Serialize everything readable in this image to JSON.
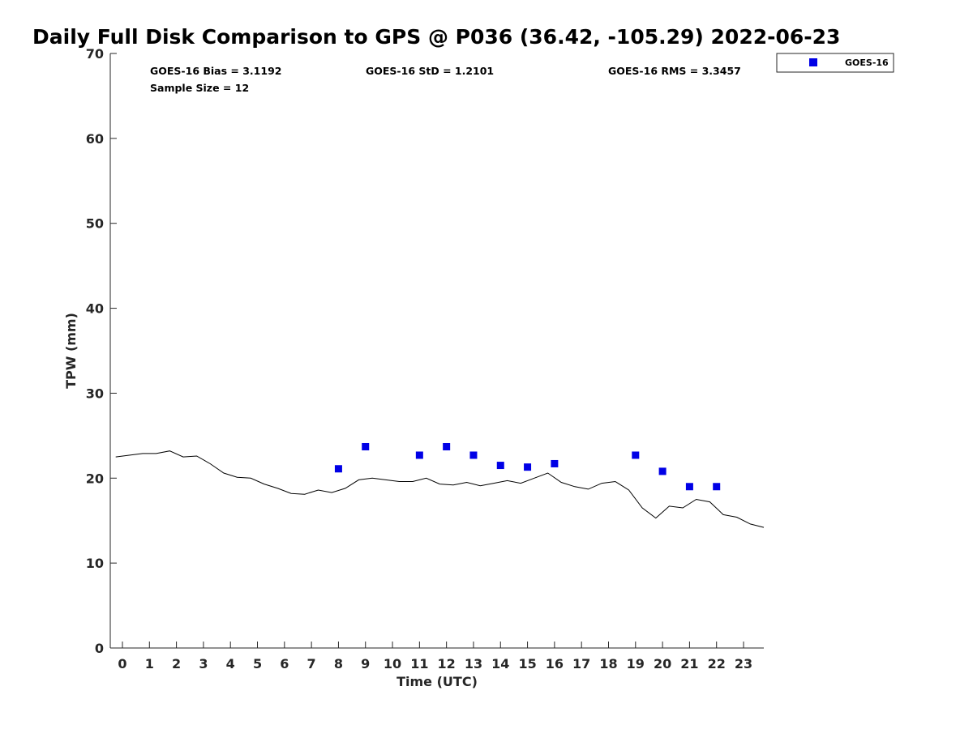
{
  "chart_data": {
    "type": "scatter",
    "title": "Daily Full Disk Comparison to GPS @ P036 (36.42, -105.29) 2022-06-23",
    "xlabel": "Time (UTC)",
    "ylabel": "TPW (mm)",
    "xlim": [
      -0.45,
      23.75
    ],
    "ylim": [
      0,
      70
    ],
    "x_ticks": [
      0,
      1,
      2,
      3,
      4,
      5,
      6,
      7,
      8,
      9,
      10,
      11,
      12,
      13,
      14,
      15,
      16,
      17,
      18,
      19,
      20,
      21,
      22,
      23
    ],
    "x_tick_labels": [
      "0",
      "1",
      "2",
      "3",
      "4",
      "5",
      "6",
      "7",
      "8",
      "9",
      "10",
      "11",
      "12",
      "13",
      "14",
      "15",
      "16",
      "17",
      "18",
      "19",
      "20",
      "21",
      "22",
      "23"
    ],
    "y_ticks": [
      0,
      10,
      20,
      30,
      40,
      50,
      60,
      70
    ],
    "y_tick_labels": [
      "0",
      "10",
      "20",
      "30",
      "40",
      "50",
      "60",
      "70"
    ],
    "grid": false,
    "legend_position": "outside top-right",
    "stats": [
      "GOES-16 Bias = 3.1192",
      "GOES-16 StD = 1.2101",
      "GOES-16 RMS = 3.3457",
      "Sample Size = 12"
    ],
    "series": [
      {
        "name": "GOES-16",
        "marker": "square",
        "color": "#0000e6",
        "x": [
          8,
          9,
          11,
          12,
          13,
          14,
          15,
          16,
          19,
          20,
          21,
          22
        ],
        "y": [
          21.1,
          23.7,
          22.7,
          23.7,
          22.7,
          21.5,
          21.3,
          21.7,
          22.7,
          20.8,
          19.0,
          19.0
        ]
      },
      {
        "marker": "line",
        "color": "#000000",
        "x": [
          -0.25,
          0.25,
          0.75,
          1.25,
          1.75,
          2.25,
          2.75,
          3.25,
          3.75,
          4.25,
          4.75,
          5.25,
          5.75,
          6.25,
          6.75,
          7.25,
          7.75,
          8.25,
          8.75,
          9.25,
          9.75,
          10.25,
          10.75,
          11.25,
          11.75,
          12.25,
          12.75,
          13.25,
          13.75,
          14.25,
          14.75,
          15.25,
          15.75,
          16.25,
          16.75,
          17.25,
          17.75,
          18.25,
          18.75,
          19.25,
          19.75,
          20.25,
          20.75,
          21.25,
          21.75,
          22.25,
          22.75,
          23.25,
          23.75
        ],
        "y": [
          22.5,
          22.7,
          22.9,
          22.9,
          23.2,
          22.5,
          22.6,
          21.7,
          20.6,
          20.1,
          20.0,
          19.3,
          18.8,
          18.2,
          18.1,
          18.6,
          18.3,
          18.8,
          19.8,
          20.0,
          19.8,
          19.6,
          19.6,
          20.0,
          19.3,
          19.2,
          19.5,
          19.1,
          19.4,
          19.7,
          19.4,
          20.0,
          20.6,
          19.5,
          19.0,
          18.7,
          19.4,
          19.6,
          18.6,
          16.5,
          15.3,
          16.7,
          16.5,
          17.5,
          17.2,
          15.7,
          15.4,
          14.6,
          14.2
        ]
      }
    ]
  }
}
